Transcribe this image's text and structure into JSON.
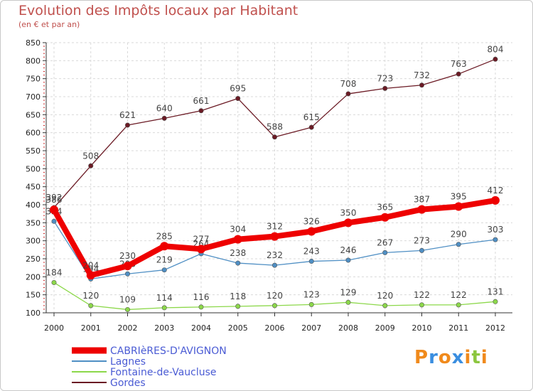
{
  "title": "Evolution des Impôts locaux par Habitant",
  "subtitle": "(en € et par an)",
  "brand": "Proxiti",
  "chart_data": {
    "type": "line",
    "x": [
      "2000",
      "2001",
      "2002",
      "2003",
      "2004",
      "2005",
      "2006",
      "2007",
      "2008",
      "2009",
      "2010",
      "2011",
      "2012"
    ],
    "ylim": [
      100,
      850
    ],
    "yticks": [
      100,
      150,
      200,
      250,
      300,
      350,
      400,
      450,
      500,
      550,
      600,
      650,
      700,
      750,
      800,
      850
    ],
    "grid": true,
    "series": [
      {
        "name": "Gordes",
        "color": "#6b1a24",
        "width": 1.3,
        "values": [
          392,
          508,
          621,
          640,
          661,
          695,
          588,
          615,
          708,
          723,
          732,
          763,
          804
        ],
        "labels": [
          "392",
          "508",
          "621",
          "640",
          "661",
          "695",
          "588",
          "615",
          "708",
          "723",
          "732",
          "763",
          "804"
        ]
      },
      {
        "name": "Lagnes",
        "color": "#4f8fc4",
        "width": 1.3,
        "values": [
          354,
          194,
          208,
          219,
          264,
          238,
          232,
          243,
          246,
          267,
          273,
          290,
          303
        ],
        "labels": [
          "354",
          "194",
          "208",
          "219",
          "264",
          "238",
          "232",
          "243",
          "246",
          "267",
          "273",
          "290",
          "303"
        ]
      },
      {
        "name": "Fontaine-de-Vaucluse",
        "color": "#8cd84a",
        "width": 1.3,
        "values": [
          184,
          120,
          109,
          114,
          116,
          118,
          120,
          123,
          129,
          120,
          122,
          122,
          131
        ],
        "labels": [
          "184",
          "120",
          "109",
          "114",
          "116",
          "118",
          "120",
          "123",
          "129",
          "120",
          "122",
          "122",
          "131"
        ]
      },
      {
        "name": "CABRIèRES-D'AVIGNON",
        "color": "#ee0000",
        "width": 8,
        "values": [
          386,
          204,
          230,
          285,
          277,
          304,
          312,
          326,
          350,
          365,
          387,
          395,
          412
        ],
        "labels": [
          "386",
          "204",
          "230",
          "285",
          "277",
          "304",
          "312",
          "326",
          "350",
          "365",
          "387",
          "395",
          "412"
        ]
      }
    ],
    "legend": [
      "CABRIèRES-D'AVIGNON",
      "Lagnes",
      "Fontaine-de-Vaucluse",
      "Gordes"
    ],
    "legend_position": "bottom-left"
  }
}
